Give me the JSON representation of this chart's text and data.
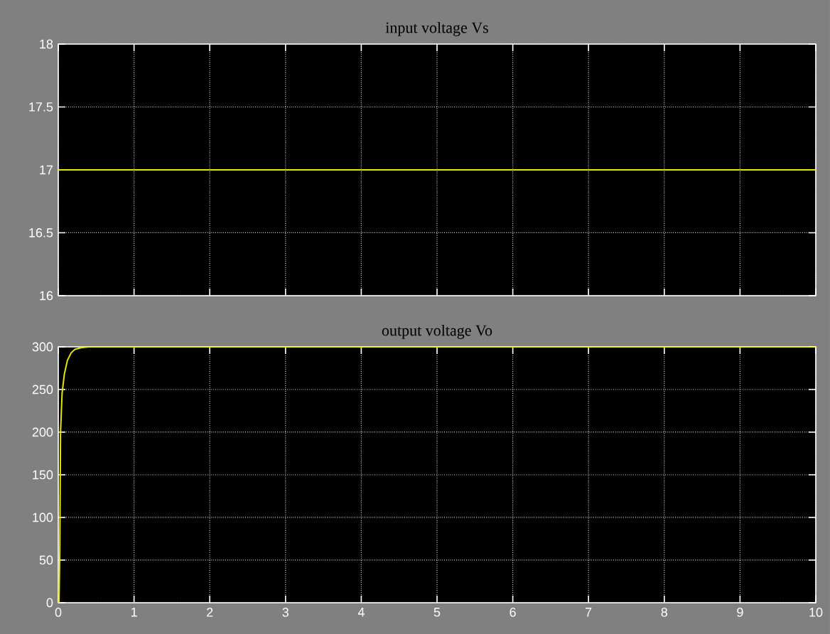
{
  "chart_data": [
    {
      "type": "line",
      "title": "input voltage Vs",
      "xlim": [
        0,
        10
      ],
      "ylim": [
        16,
        18
      ],
      "xticks": [
        0,
        1,
        2,
        3,
        4,
        5,
        6,
        7,
        8,
        9,
        10
      ],
      "yticks": [
        16,
        16.5,
        17,
        17.5,
        18
      ],
      "tick_labels": "y",
      "grid": true,
      "series": [
        {
          "color": "#e6e600",
          "x": [
            0,
            10
          ],
          "values": [
            17,
            17
          ]
        }
      ]
    },
    {
      "type": "line",
      "title": "output voltage Vo",
      "xlim": [
        0,
        10
      ],
      "ylim": [
        0,
        300
      ],
      "xticks": [
        0,
        1,
        2,
        3,
        4,
        5,
        6,
        7,
        8,
        9,
        10
      ],
      "yticks": [
        0,
        50,
        100,
        150,
        200,
        250,
        300
      ],
      "grid": true,
      "series": [
        {
          "color": "#e6e600",
          "x": [
            0,
            0.01,
            0.02,
            0.03,
            0.05,
            0.08,
            0.12,
            0.17,
            0.22,
            0.3,
            0.4,
            10
          ],
          "values": [
            0,
            0,
            60,
            200,
            245,
            268,
            284,
            293,
            297,
            299,
            300,
            300
          ]
        }
      ]
    }
  ]
}
